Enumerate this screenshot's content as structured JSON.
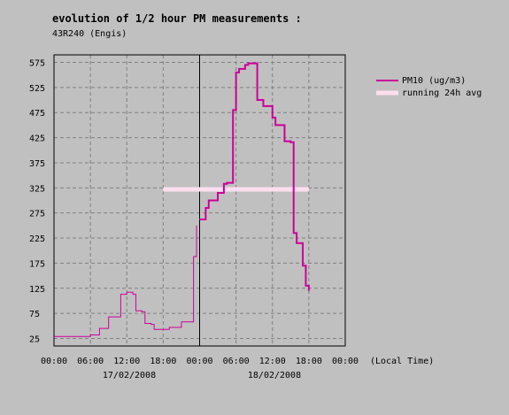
{
  "chart_data": {
    "type": "line",
    "title": "evolution of 1/2 hour PM measurements :",
    "subtitle": "43R240 (Engis)",
    "ylim": [
      10,
      590
    ],
    "y_ticks": [
      25,
      75,
      125,
      175,
      225,
      275,
      325,
      375,
      425,
      475,
      525,
      575
    ],
    "x_ticks": [
      "00:00",
      "06:00",
      "12:00",
      "18:00",
      "00:00",
      "06:00",
      "12:00",
      "18:00",
      "00:00"
    ],
    "x_unit_label": "(Local Time)",
    "date_labels": [
      "17/02/2008",
      "18/02/2008"
    ],
    "xlim": [
      "2008-02-17 00:00",
      "2008-02-19 00:00"
    ],
    "day_separator": "2008-02-18 00:00",
    "grid": true,
    "legend_position": "right",
    "colors": {
      "pm10": "#cc0099",
      "avg": "#ffdfef",
      "background": "#c0c0c0",
      "grid": "#808080"
    },
    "series": [
      {
        "name": "PM10 (ug/m3)",
        "x": [
          "2008-02-17 00:00",
          "2008-02-17 01:00",
          "2008-02-17 02:00",
          "2008-02-17 03:00",
          "2008-02-17 04:00",
          "2008-02-17 05:00",
          "2008-02-17 06:00",
          "2008-02-17 06:30",
          "2008-02-17 07:30",
          "2008-02-17 08:00",
          "2008-02-17 09:00",
          "2008-02-17 09:30",
          "2008-02-17 10:30",
          "2008-02-17 11:00",
          "2008-02-17 12:00",
          "2008-02-17 13:00",
          "2008-02-17 13:30",
          "2008-02-17 14:30",
          "2008-02-17 15:00",
          "2008-02-17 16:00",
          "2008-02-17 16:30",
          "2008-02-17 17:30",
          "2008-02-17 18:00",
          "2008-02-17 19:00",
          "2008-02-17 20:00",
          "2008-02-17 21:00",
          "2008-02-17 21:30",
          "2008-02-17 22:30",
          "2008-02-17 23:00",
          "2008-02-17 23:30"
        ],
        "values": [
          29,
          29,
          29,
          29,
          29,
          29,
          32,
          32,
          45,
          45,
          68,
          68,
          68,
          113,
          117,
          113,
          80,
          78,
          55,
          53,
          43,
          43,
          43,
          47,
          47,
          58,
          58,
          58,
          188,
          250
        ]
      },
      {
        "name": "PM10 (ug/m3)",
        "x": [
          "2008-02-18 00:00",
          "2008-02-18 00:30",
          "2008-02-18 01:00",
          "2008-02-18 01:30",
          "2008-02-18 02:30",
          "2008-02-18 03:00",
          "2008-02-18 04:00",
          "2008-02-18 04:30",
          "2008-02-18 05:00",
          "2008-02-18 05:30",
          "2008-02-18 06:00",
          "2008-02-18 06:30",
          "2008-02-18 07:00",
          "2008-02-18 07:30",
          "2008-02-18 08:00",
          "2008-02-18 09:00",
          "2008-02-18 09:30",
          "2008-02-18 10:30",
          "2008-02-18 11:00",
          "2008-02-18 12:00",
          "2008-02-18 12:30",
          "2008-02-18 13:00",
          "2008-02-18 14:00",
          "2008-02-18 15:00",
          "2008-02-18 15:30",
          "2008-02-18 16:00",
          "2008-02-18 16:30",
          "2008-02-18 17:00",
          "2008-02-18 17:30",
          "2008-02-18 18:00"
        ],
        "values": [
          262,
          262,
          285,
          300,
          300,
          315,
          333,
          335,
          335,
          480,
          555,
          562,
          562,
          570,
          573,
          573,
          500,
          488,
          488,
          465,
          450,
          450,
          418,
          416,
          235,
          215,
          215,
          170,
          130,
          120
        ]
      },
      {
        "name": "running 24h avg",
        "x": [
          "2008-02-17 18:00",
          "2008-02-18 18:00"
        ],
        "values": [
          322,
          322
        ]
      }
    ]
  }
}
